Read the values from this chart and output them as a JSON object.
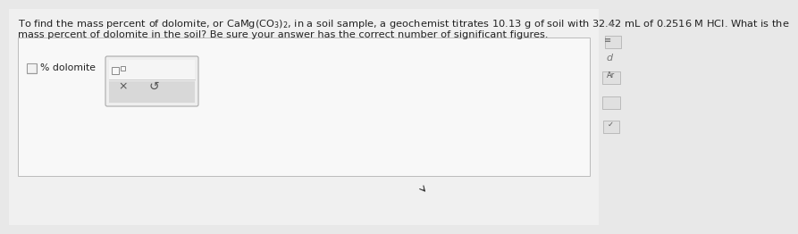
{
  "bg_color": "#e8e8e8",
  "white_panel_color": "#f0f0f0",
  "white_box_color": "#f8f8f8",
  "input_widget_color": "#e4e4e4",
  "input_top_color": "#f2f2f2",
  "input_bottom_color": "#d8d8d8",
  "text_color": "#222222",
  "line1_part1": "To find the mass percent of dolomite, or CaMg(CO",
  "line1_co3_sub": "3",
  "line1_close": ")",
  "line1_sub2": "2",
  "line1_comma": ",",
  "line1_end": " in a soil sample, a geochemist titrates 10.13 g of soil with 32.42 mL of 0.2516 M HCl. What is the",
  "line2": "mass percent of dolomite in the soil? Be sure your answer has the correct number of significant figures.",
  "label_percent": "% dolomite",
  "font_size_main": 8.2,
  "font_size_label": 7.8,
  "font_size_small": 5.5,
  "sidebar_bg": "#cccccc",
  "answer_box_color": "#f5f5f5"
}
